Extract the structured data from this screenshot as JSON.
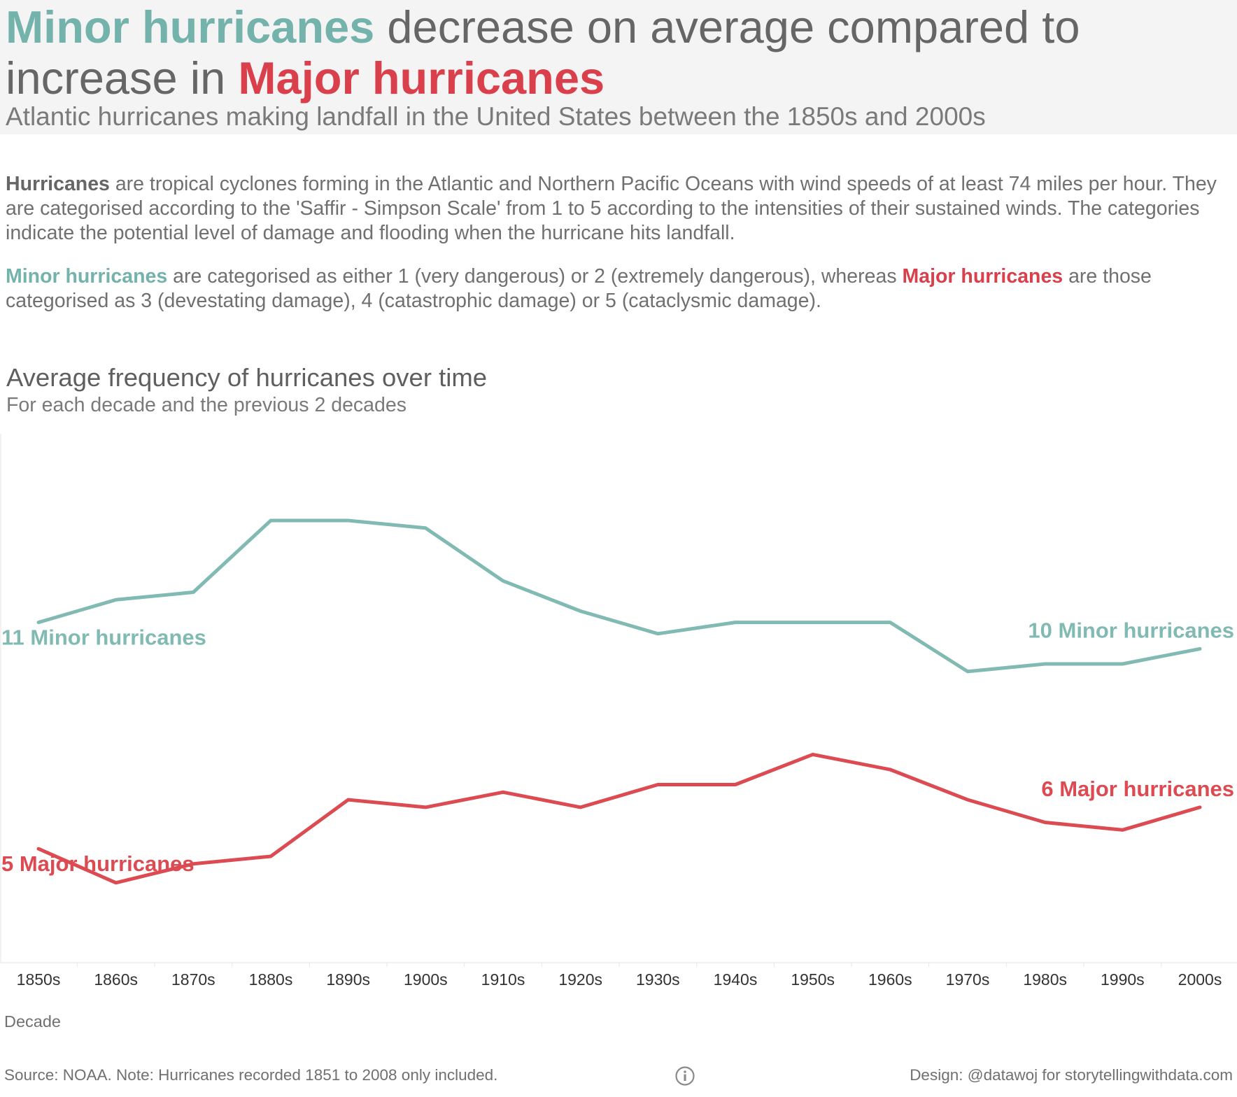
{
  "header": {
    "title_minor": "Minor hurricanes",
    "title_mid": " decrease on average compared to increase in ",
    "title_major": "Major hurricanes",
    "subtitle": "Atlantic hurricanes making landfall in the United States between the 1850s and 2000s"
  },
  "intro": {
    "p1_bold": "Hurricanes",
    "p1_text": " are tropical cyclones forming in the Atlantic and Northern Pacific Oceans with wind speeds of at least 74 miles per hour. They are categorised according to the 'Saffir - Simpson Scale' from 1 to 5 according to the intensities of their sustained winds.  The categories indicate the potential level of damage and flooding when the hurricane hits landfall.",
    "p2_minor": "Minor hurricanes",
    "p2_text_a": " are categorised as either 1 (very dangerous) or 2 (extremely dangerous), whereas ",
    "p2_major": "Major hurricanes",
    "p2_text_b": " are those categorised as 3 (devestating damage), 4 (catastrophic damage) or 5 (cataclysmic damage)."
  },
  "chart_data": {
    "type": "line",
    "title": "Average frequency of hurricanes over time",
    "subtitle": "For each decade and the previous 2 decades",
    "xlabel": "Decade",
    "ylabel": "",
    "ylim": [
      2,
      16
    ],
    "grid": false,
    "categories": [
      "1850s",
      "1860s",
      "1870s",
      "1880s",
      "1890s",
      "1900s",
      "1910s",
      "1920s",
      "1930s",
      "1940s",
      "1950s",
      "1960s",
      "1970s",
      "1980s",
      "1990s",
      "2000s"
    ],
    "series": [
      {
        "name": "Minor hurricanes",
        "color": "#80bab3",
        "values": [
          11.0,
          11.6,
          11.8,
          13.7,
          13.7,
          13.5,
          12.1,
          11.3,
          10.7,
          11.0,
          11.0,
          11.0,
          9.7,
          9.9,
          9.9,
          10.3
        ],
        "start_label": "11 Minor hurricanes",
        "end_label": "10 Minor hurricanes"
      },
      {
        "name": "Major hurricanes",
        "color": "#dc4a52",
        "values": [
          5.0,
          4.1,
          4.6,
          4.8,
          6.3,
          6.1,
          6.5,
          6.1,
          6.7,
          6.7,
          7.5,
          7.1,
          6.3,
          5.7,
          5.5,
          6.1
        ],
        "start_label": "5 Major hurricanes",
        "end_label": "6 Major hurricanes"
      }
    ]
  },
  "footer": {
    "source": "Source: NOAA.  Note: Hurricanes recorded 1851 to 2008 only included.",
    "design": "Design: @datawoj for storytellingwithdata.com",
    "info_icon": "info-icon"
  }
}
